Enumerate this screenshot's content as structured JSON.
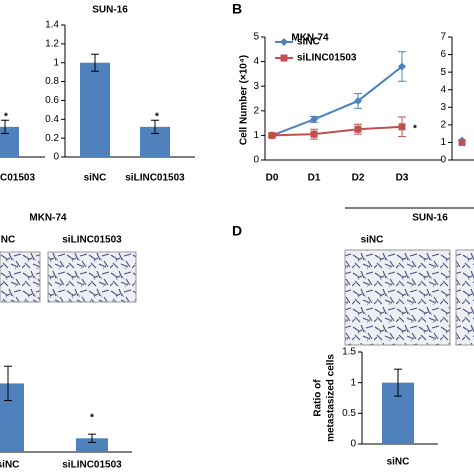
{
  "panels": [
    "B",
    "D"
  ],
  "chart_data": [
    {
      "type": "bar",
      "categories": [
        "C01503"
      ],
      "values": [
        0.32
      ],
      "errors": [
        0.07
      ],
      "color": "#4f81bd",
      "ylim": [
        0,
        1.4
      ],
      "annotations": [
        "*"
      ]
    },
    {
      "type": "bar",
      "title": "SUN-16",
      "categories": [
        "siNC",
        "siLINC01503"
      ],
      "values": [
        1.0,
        0.32
      ],
      "errors": [
        0.09,
        0.07
      ],
      "color": "#4f81bd",
      "ylim": [
        0,
        1.4
      ],
      "yticks": [
        0,
        0.2,
        0.4,
        0.6,
        0.8,
        1,
        1.2,
        1.4
      ],
      "annotations": [
        "*"
      ]
    },
    {
      "type": "line",
      "title": "MKN-74",
      "y_label": "Cell Number (×10⁴)",
      "categories": [
        "D0",
        "D1",
        "D2",
        "D3"
      ],
      "series": [
        {
          "name": "siNC",
          "color": "#4f81bd",
          "values": [
            1.0,
            1.65,
            2.4,
            3.8
          ],
          "errors": [
            0.05,
            0.12,
            0.3,
            0.6
          ]
        },
        {
          "name": "siLINC01503",
          "color": "#c0504d",
          "values": [
            1.0,
            1.05,
            1.25,
            1.35
          ],
          "errors": [
            0.05,
            0.2,
            0.2,
            0.4
          ]
        }
      ],
      "ylim": [
        0,
        5
      ],
      "yticks": [
        0,
        1,
        2,
        3,
        4,
        5
      ],
      "annotations": [
        "*"
      ]
    },
    {
      "type": "line",
      "categories": [
        null
      ],
      "series": [
        {
          "color": "#4f81bd",
          "values": [
            1.1
          ]
        },
        {
          "color": "#c0504d",
          "values": [
            1.0
          ]
        }
      ],
      "ylim": [
        0,
        7
      ],
      "yticks": [
        0,
        1,
        2,
        3,
        4,
        5,
        6,
        7
      ]
    },
    {
      "type": "bar",
      "title": "MKN-74",
      "image_labels": [
        "NC",
        "siLINC01503"
      ],
      "categories": [
        "siNC",
        "siLINC01503"
      ],
      "values": [
        1.0,
        0.2
      ],
      "errors": [
        0.25,
        0.06
      ],
      "color": "#4f81bd",
      "ylim": [
        0,
        1.4
      ],
      "annotations": [
        "*"
      ]
    },
    {
      "type": "bar",
      "title": "SUN-16",
      "image_labels": [
        "siNC"
      ],
      "y_label": [
        "Ratio of",
        "metastasized cells"
      ],
      "categories": [
        "siNC"
      ],
      "values": [
        1.0
      ],
      "errors": [
        0.22
      ],
      "color": "#4f81bd",
      "ylim": [
        0,
        1.5
      ],
      "yticks": [
        0,
        0.5,
        1,
        1.5
      ]
    }
  ]
}
